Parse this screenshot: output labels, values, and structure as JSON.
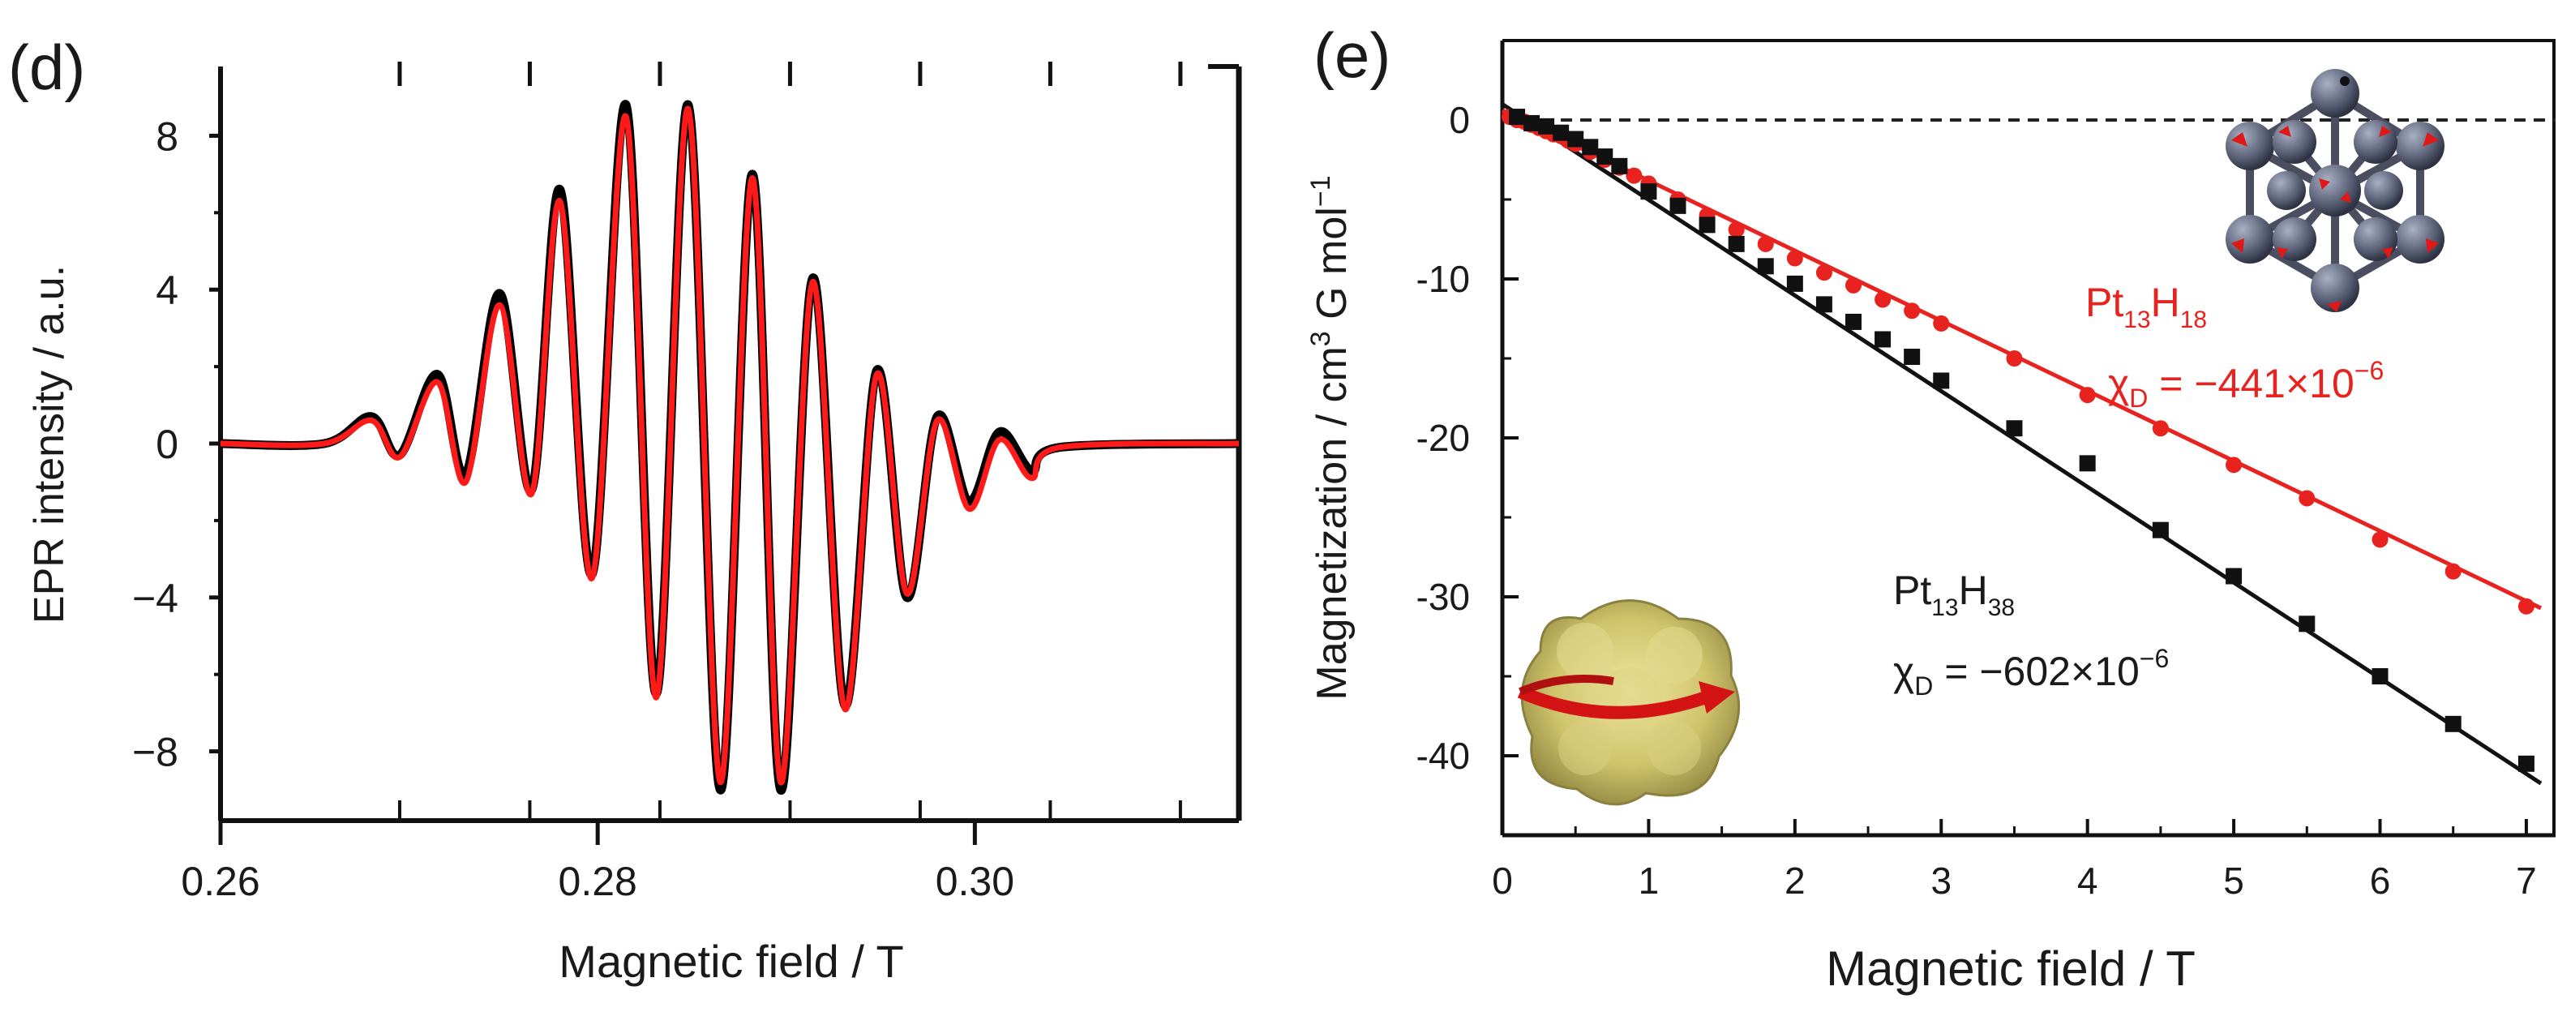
{
  "chart_data": [
    {
      "panel_label": "(d)",
      "type": "line",
      "xlabel": "Magnetic field / T",
      "ylabel": "EPR intensity / a.u.",
      "xlim": [
        0.26,
        0.314
      ],
      "ylim": [
        -9.8,
        9.8
      ],
      "xticks": [
        "0.26",
        "0.28",
        "0.30"
      ],
      "yticks": [
        "8",
        "4",
        "0",
        "−4",
        "−8"
      ],
      "grid": false,
      "colors": {
        "experimental": "#000000",
        "simulated": "#ff1a1a"
      },
      "series": [
        {
          "color": "#000000",
          "x": [
            0.26,
            0.2655,
            0.268,
            0.2695,
            0.2715,
            0.273,
            0.2748,
            0.2765,
            0.278,
            0.2797,
            0.2815,
            0.2831,
            0.2848,
            0.2865,
            0.2882,
            0.2897,
            0.2914,
            0.2931,
            0.2948,
            0.2964,
            0.298,
            0.2997,
            0.3013,
            0.303,
            0.3045,
            0.314
          ],
          "y": [
            0,
            0,
            0.7,
            -0.3,
            1.8,
            -0.8,
            3.9,
            -1.2,
            6.6,
            -3.4,
            8.8,
            -6.5,
            8.8,
            -9.0,
            7.0,
            -9.0,
            4.3,
            -6.8,
            1.9,
            -4.0,
            0.7,
            -1.5,
            0.3,
            -0.7,
            -0.1,
            0
          ]
        },
        {
          "color": "#ff1a1a",
          "x": [
            0.26,
            0.2655,
            0.268,
            0.2695,
            0.2715,
            0.273,
            0.2748,
            0.2765,
            0.278,
            0.2797,
            0.2815,
            0.2831,
            0.2848,
            0.2865,
            0.2882,
            0.2897,
            0.2914,
            0.2931,
            0.2948,
            0.2964,
            0.298,
            0.2997,
            0.3013,
            0.303,
            0.3045,
            0.314
          ],
          "y": [
            0,
            0,
            0.6,
            -0.35,
            1.6,
            -1.0,
            3.6,
            -1.3,
            6.3,
            -3.5,
            8.5,
            -6.6,
            8.7,
            -8.8,
            6.9,
            -8.8,
            4.2,
            -6.9,
            1.8,
            -3.9,
            0.6,
            -1.7,
            0.1,
            -0.9,
            -0.1,
            0
          ]
        }
      ]
    },
    {
      "panel_label": "(e)",
      "type": "scatter",
      "xlabel": "Magnetic field / T",
      "ylabel_parts": {
        "main": "Magnetization / cm",
        "sup": "3",
        "mid": " G mol",
        "sup2": "−1"
      },
      "xlim": [
        0,
        7.2
      ],
      "ylim": [
        -45,
        5
      ],
      "xticks": [
        "0",
        "1",
        "2",
        "3",
        "4",
        "5",
        "6",
        "7"
      ],
      "yticks": [
        "0",
        "-10",
        "-20",
        "-30",
        "-40"
      ],
      "grid": false,
      "zero_line": "dashed",
      "series": [
        {
          "color": "#e8231f",
          "marker": "circle",
          "base": "Pt",
          "sub1": "13",
          "mid": "H",
          "sub2": "18",
          "chi_prefix": "χ",
          "chi_sub": "D",
          "chi_value": " = −441×10",
          "chi_exp": "−6",
          "fit": {
            "slope": -4.41,
            "intercept": 0.6
          },
          "x": [
            0.05,
            0.1,
            0.15,
            0.2,
            0.25,
            0.3,
            0.35,
            0.4,
            0.45,
            0.5,
            0.6,
            0.7,
            0.8,
            0.9,
            1.0,
            1.2,
            1.4,
            1.6,
            1.8,
            2.0,
            2.2,
            2.4,
            2.6,
            2.8,
            3.0,
            3.5,
            4.0,
            4.5,
            5.0,
            5.5,
            6.0,
            6.5,
            7.0
          ],
          "y": [
            0.2,
            0.0,
            -0.1,
            -0.3,
            -0.5,
            -0.7,
            -0.9,
            -1.0,
            -1.3,
            -1.5,
            -2.0,
            -2.5,
            -3.0,
            -3.5,
            -4.0,
            -5.0,
            -6.0,
            -6.9,
            -7.8,
            -8.7,
            -9.6,
            -10.4,
            -11.3,
            -12.0,
            -12.8,
            -15.0,
            -17.3,
            -19.4,
            -21.7,
            -23.8,
            -26.4,
            -28.4,
            -30.6
          ]
        },
        {
          "color": "#111111",
          "marker": "square",
          "base": "Pt",
          "sub1": "13",
          "mid": "H",
          "sub2": "38",
          "chi_prefix": "χ",
          "chi_sub": "D",
          "chi_value": " = −602×10",
          "chi_exp": "−6",
          "fit": {
            "slope": -6.02,
            "intercept": 1.0
          },
          "x": [
            0.1,
            0.2,
            0.3,
            0.4,
            0.5,
            0.6,
            0.7,
            0.8,
            1.0,
            1.2,
            1.4,
            1.6,
            1.8,
            2.0,
            2.2,
            2.4,
            2.6,
            2.8,
            3.0,
            3.5,
            4.0,
            4.5,
            5.0,
            5.5,
            6.0,
            6.5,
            7.0
          ],
          "y": [
            0.2,
            -0.2,
            -0.4,
            -0.8,
            -1.2,
            -1.7,
            -2.3,
            -2.9,
            -4.5,
            -5.4,
            -6.6,
            -7.8,
            -9.2,
            -10.3,
            -11.6,
            -12.7,
            -13.8,
            -14.9,
            -16.4,
            -19.4,
            -21.6,
            -25.8,
            -28.7,
            -31.7,
            -35.0,
            -38.0,
            -40.5
          ]
        }
      ]
    }
  ]
}
